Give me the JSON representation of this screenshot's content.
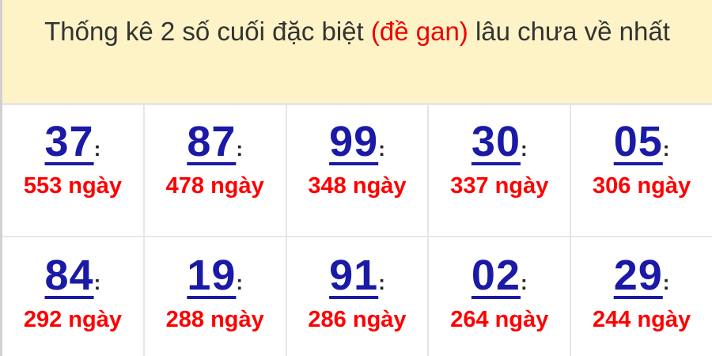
{
  "header": {
    "title_prefix": "Thống kê 2 số cuối đặc biệt ",
    "title_highlight": "(đề gan)",
    "title_suffix": " lâu chưa về nhất"
  },
  "colon": ":",
  "items": [
    {
      "number": "37",
      "days": "553 ngày"
    },
    {
      "number": "87",
      "days": "478 ngày"
    },
    {
      "number": "99",
      "days": "348 ngày"
    },
    {
      "number": "30",
      "days": "337 ngày"
    },
    {
      "number": "05",
      "days": "306 ngày"
    },
    {
      "number": "84",
      "days": "292 ngày"
    },
    {
      "number": "19",
      "days": "288 ngày"
    },
    {
      "number": "91",
      "days": "286 ngày"
    },
    {
      "number": "02",
      "days": "264 ngày"
    },
    {
      "number": "29",
      "days": "244 ngày"
    }
  ],
  "colors": {
    "number": "#1a1aa6",
    "days": "#ff0000",
    "header_bg": "#fdf3c6",
    "highlight": "#ee0000"
  }
}
